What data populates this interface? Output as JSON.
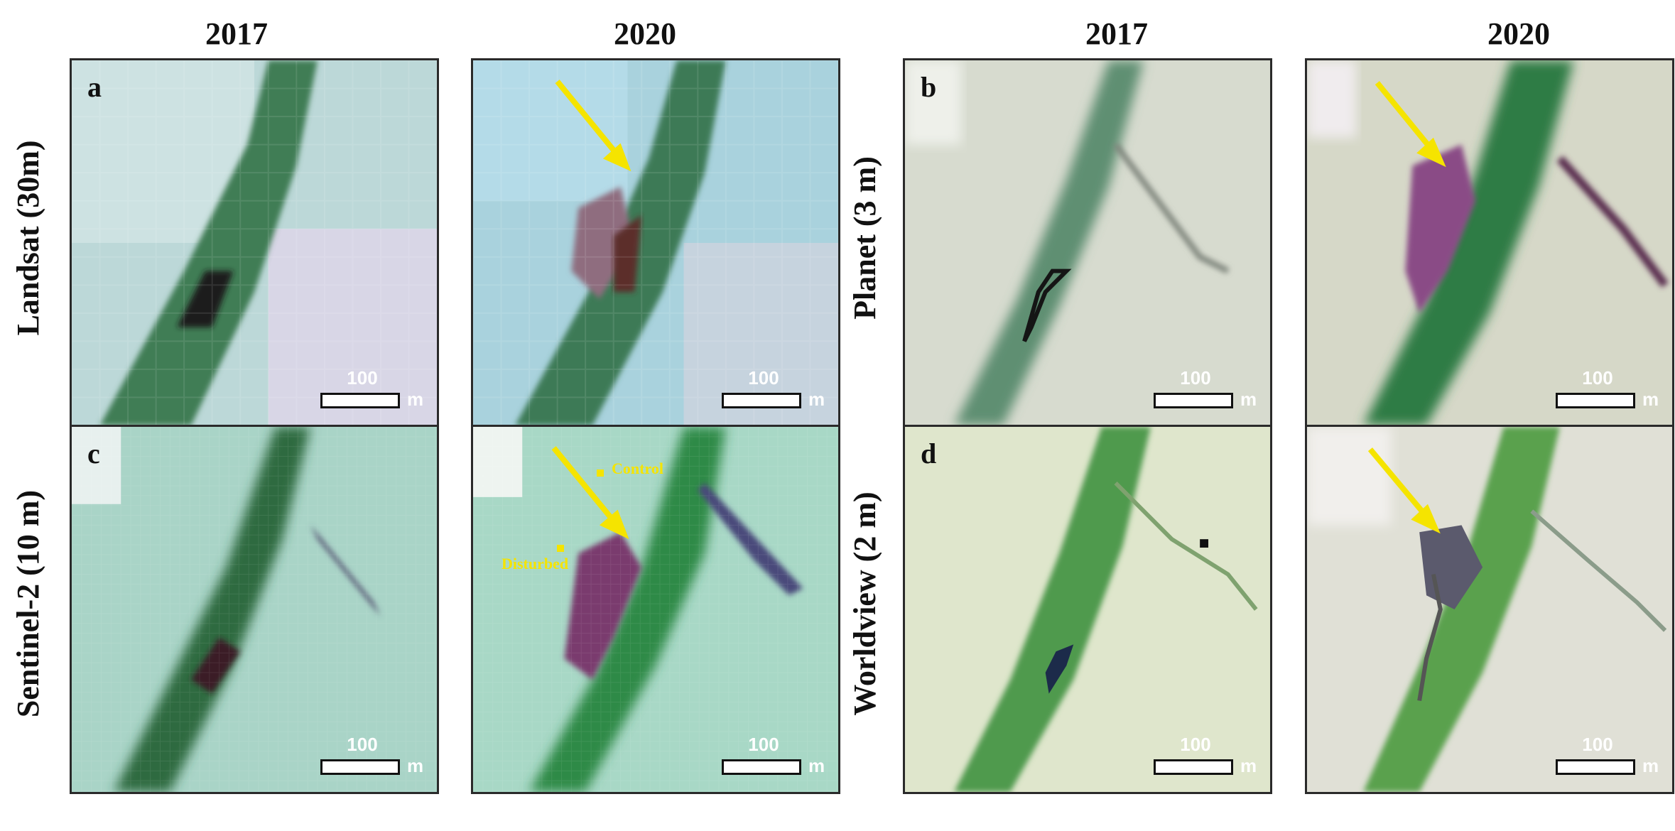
{
  "columns": {
    "left": [
      "2017",
      "2020"
    ],
    "right": [
      "2017",
      "2020"
    ]
  },
  "rows": {
    "landsat": "Landsat (30m)",
    "sentinel": "Sentinel-2 (10 m)",
    "planet": "Planet (3 m)",
    "worldview": "Worldview (2 m)"
  },
  "panels": {
    "a": "a",
    "b": "b",
    "c": "c",
    "d": "d"
  },
  "scale_bar": {
    "value": "100",
    "unit": "m"
  },
  "annotations": {
    "control": "Control",
    "disturbed": "Disturbed"
  },
  "colors": {
    "arrow": "#f5e400",
    "vegetation": "#2e7a3c",
    "disturbance": "#7a3a6e"
  }
}
